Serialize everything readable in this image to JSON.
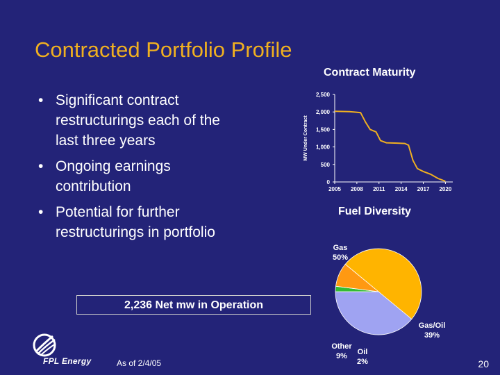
{
  "slide": {
    "title": "Contracted Portfolio Profile",
    "bullets": [
      "Significant contract restructurings each of the last three years",
      "Ongoing earnings contribution",
      "Potential for further restructurings in portfolio"
    ],
    "box_text": "2,236 Net mw in Operation",
    "footer_note": "As of 2/4/05",
    "page_number": "20",
    "logo_text": "FPL Energy",
    "colors": {
      "background": "#232378",
      "title": "#f0b020",
      "text": "#ffffff"
    }
  },
  "chart_data": [
    {
      "type": "line",
      "title": "Contract Maturity",
      "ylabel": "MW Under Contract",
      "xlabel": "",
      "x_ticks": [
        "2005",
        "2008",
        "2011",
        "2014",
        "2017",
        "2020"
      ],
      "y_ticks": [
        "0",
        "500",
        "1,000",
        "1,500",
        "2,000",
        "2,500"
      ],
      "xlim": [
        2005,
        2021
      ],
      "ylim": [
        0,
        2500
      ],
      "grid": false,
      "series": [
        {
          "color": "#f0b020",
          "points": [
            [
              2005,
              2020
            ],
            [
              2007,
              2010
            ],
            [
              2008.5,
              1980
            ],
            [
              2009.2,
              1700
            ],
            [
              2009.8,
              1500
            ],
            [
              2010.6,
              1430
            ],
            [
              2011.2,
              1180
            ],
            [
              2012,
              1120
            ],
            [
              2013.5,
              1110
            ],
            [
              2014.5,
              1100
            ],
            [
              2015,
              1050
            ],
            [
              2015.6,
              620
            ],
            [
              2016.2,
              380
            ],
            [
              2017,
              300
            ],
            [
              2018,
              220
            ],
            [
              2019,
              100
            ],
            [
              2020,
              20
            ]
          ]
        }
      ]
    },
    {
      "type": "pie",
      "title": "Fuel Diversity",
      "slices": [
        {
          "label": "Gas",
          "value": 50,
          "display": "50%",
          "color": "#ffb400"
        },
        {
          "label": "Gas/Oil",
          "value": 39,
          "display": "39%",
          "color": "#9fa3f2"
        },
        {
          "label": "Oil",
          "value": 2,
          "display": "2%",
          "color": "#33bb33"
        },
        {
          "label": "Other",
          "value": 9,
          "display": "9%",
          "color": "#ff9912"
        }
      ]
    }
  ]
}
